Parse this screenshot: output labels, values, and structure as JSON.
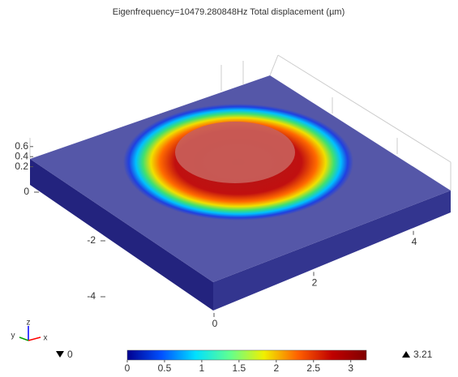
{
  "chart_data": {
    "type": "surface3d",
    "title": "Eigenfrequency=10479.280848Hz Total displacement (µm)",
    "zticks": [
      0.2,
      0.4,
      0.6
    ],
    "yticks": [
      -4,
      -2,
      0
    ],
    "xticks": [
      0,
      2,
      4
    ],
    "triad": [
      "x",
      "y",
      "z"
    ],
    "colorbar": {
      "clim": [
        0,
        3.21
      ],
      "ticks": [
        0,
        0.5,
        1,
        1.5,
        2,
        2.5,
        3
      ],
      "min": 0,
      "max": 3.21,
      "colors": [
        "#00008f",
        "#0050ff",
        "#00e0ff",
        "#60ff90",
        "#f0f000",
        "#ff6000",
        "#c00000",
        "#800000"
      ]
    }
  }
}
